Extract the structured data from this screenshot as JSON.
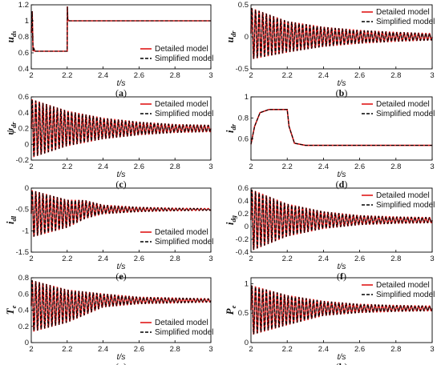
{
  "colors": {
    "detailed": "#e01818",
    "simplified": "#000000",
    "axis": "#000000"
  },
  "chart_data": [
    {
      "type": "line",
      "panel": "a",
      "caption": "(a)",
      "ylabel_main": "u",
      "ylabel_sub": "ds",
      "xlabel": "t/s",
      "xlim": [
        2,
        3
      ],
      "ylim": [
        0.4,
        1.2
      ],
      "xticks": [
        "2",
        "2.2",
        "2.4",
        "2.6",
        "2.8",
        "3"
      ],
      "yticks": [
        "0.4",
        "0.6",
        "0.8",
        "1",
        "1.2"
      ],
      "legend": [
        "Detailed model",
        "Simplified model"
      ],
      "legend_position": "lower-right",
      "series": [
        {
          "name": "Detailed model",
          "style": "solid",
          "color": "#e01818",
          "x": [
            2.0,
            2.005,
            2.01,
            2.015,
            2.02,
            2.2,
            2.201,
            2.203,
            2.21,
            3.0
          ],
          "values": [
            0.85,
            1.12,
            0.62,
            0.65,
            0.62,
            0.62,
            1.18,
            1.02,
            1.0,
            1.0
          ]
        },
        {
          "name": "Simplified model",
          "style": "dashed",
          "color": "#000000",
          "x": [
            2.0,
            2.005,
            2.01,
            2.015,
            2.02,
            2.2,
            2.201,
            2.203,
            2.21,
            3.0
          ],
          "values": [
            0.85,
            1.12,
            0.62,
            0.65,
            0.62,
            0.62,
            1.18,
            1.02,
            1.0,
            1.0
          ]
        }
      ]
    },
    {
      "type": "line",
      "panel": "b",
      "caption": "(b)",
      "ylabel_main": "u",
      "ylabel_sub": "dr",
      "xlabel": "t/s",
      "xlim": [
        2,
        3
      ],
      "ylim": [
        -0.5,
        0.5
      ],
      "xticks": [
        "2",
        "2.2",
        "2.4",
        "2.6",
        "2.8",
        "3"
      ],
      "yticks": [
        "-0.5",
        "0",
        "0.5"
      ],
      "legend": [
        "Detailed model",
        "Simplified model"
      ],
      "legend_position": "top-right",
      "series": [
        {
          "name": "Detailed model",
          "style": "solid",
          "color": "#e01818",
          "x": [
            2.0,
            2.2,
            2.4,
            2.6,
            2.8,
            3.0
          ],
          "values": [
            0.05,
            0.0,
            0.0,
            0.0,
            0.0,
            0.0
          ],
          "oscillation_amplitude": [
            0.4,
            0.24,
            0.15,
            0.1,
            0.07,
            0.05
          ],
          "oscillation_frequency_hz": 50
        },
        {
          "name": "Simplified model",
          "style": "dashed",
          "color": "#000000",
          "x": [
            2.0,
            2.2,
            2.4,
            2.6,
            2.8,
            3.0
          ],
          "values": [
            0.05,
            0.0,
            0.0,
            0.0,
            0.0,
            0.0
          ],
          "oscillation_amplitude": [
            0.4,
            0.24,
            0.15,
            0.1,
            0.07,
            0.05
          ],
          "oscillation_frequency_hz": 50
        }
      ]
    },
    {
      "type": "line",
      "panel": "c",
      "caption": "(c)",
      "ylabel_main": "ψ",
      "ylabel_sub": "dr",
      "xlabel": "t/s",
      "xlim": [
        2,
        3
      ],
      "ylim": [
        -0.2,
        0.6
      ],
      "xticks": [
        "2",
        "2.2",
        "2.4",
        "2.6",
        "2.8",
        "3"
      ],
      "yticks": [
        "-0.2",
        "0",
        "0.2",
        "0.4",
        "0.6"
      ],
      "legend": [
        "Detailed model",
        "Simplified model"
      ],
      "legend_position": "top-right",
      "series": [
        {
          "name": "Detailed model",
          "style": "solid",
          "color": "#e01818",
          "x": [
            2.0,
            2.2,
            2.4,
            2.6,
            2.8,
            3.0
          ],
          "values": [
            0.2,
            0.2,
            0.2,
            0.2,
            0.2,
            0.2
          ],
          "oscillation_amplitude": [
            0.37,
            0.22,
            0.13,
            0.08,
            0.05,
            0.04
          ],
          "oscillation_frequency_hz": 50
        },
        {
          "name": "Simplified model",
          "style": "dashed",
          "color": "#000000",
          "x": [
            2.0,
            2.2,
            2.4,
            2.6,
            2.8,
            3.0
          ],
          "values": [
            0.2,
            0.2,
            0.2,
            0.2,
            0.2,
            0.2
          ],
          "oscillation_amplitude": [
            0.37,
            0.22,
            0.13,
            0.08,
            0.05,
            0.04
          ],
          "oscillation_frequency_hz": 50
        }
      ]
    },
    {
      "type": "line",
      "panel": "d",
      "caption": "(d)",
      "ylabel_main": "i",
      "ylabel_sub": "dr",
      "xlabel": "t/s",
      "xlim": [
        2,
        3
      ],
      "ylim": [
        0.4,
        1.0
      ],
      "xticks": [
        "2",
        "2.2",
        "2.4",
        "2.6",
        "2.8",
        "3"
      ],
      "yticks": [
        "0.6",
        "0.8",
        "1"
      ],
      "legend": [
        "Detailed model",
        "Simplified model"
      ],
      "legend_position": "top-right",
      "series": [
        {
          "name": "Detailed model",
          "style": "solid",
          "color": "#e01818",
          "x": [
            2.0,
            2.02,
            2.05,
            2.1,
            2.2,
            2.21,
            2.24,
            2.3,
            3.0
          ],
          "values": [
            0.55,
            0.72,
            0.85,
            0.88,
            0.88,
            0.72,
            0.56,
            0.54,
            0.54
          ]
        },
        {
          "name": "Simplified model",
          "style": "dashed",
          "color": "#000000",
          "x": [
            2.0,
            2.02,
            2.05,
            2.1,
            2.2,
            2.21,
            2.24,
            2.3,
            3.0
          ],
          "values": [
            0.55,
            0.72,
            0.85,
            0.88,
            0.88,
            0.72,
            0.56,
            0.54,
            0.54
          ]
        }
      ]
    },
    {
      "type": "line",
      "panel": "e",
      "caption": "(e)",
      "ylabel_main": "i",
      "ylabel_sub": "dl",
      "xlabel": "t/s",
      "xlim": [
        2,
        3
      ],
      "ylim": [
        -1.5,
        0
      ],
      "xticks": [
        "2",
        "2.2",
        "2.4",
        "2.6",
        "2.8",
        "3"
      ],
      "yticks": [
        "-1.5",
        "-1",
        "-0.5",
        "0"
      ],
      "legend": [
        "Detailed model",
        "Simplified model"
      ],
      "legend_position": "lower-right",
      "series": [
        {
          "name": "Detailed model",
          "style": "solid",
          "color": "#e01818",
          "x": [
            2.0,
            2.2,
            2.3,
            2.4,
            2.6,
            2.8,
            3.0
          ],
          "values": [
            -0.6,
            -0.6,
            -0.5,
            -0.5,
            -0.5,
            -0.5,
            -0.5
          ],
          "oscillation_amplitude": [
            0.55,
            0.32,
            0.1,
            0.05,
            0.03,
            0.02,
            0.02
          ],
          "oscillation_frequency_hz": 50
        },
        {
          "name": "Simplified model",
          "style": "dashed",
          "color": "#000000",
          "x": [
            2.0,
            2.2,
            2.3,
            2.4,
            2.6,
            2.8,
            3.0
          ],
          "values": [
            -0.6,
            -0.6,
            -0.5,
            -0.5,
            -0.5,
            -0.5,
            -0.5
          ],
          "oscillation_amplitude": [
            0.55,
            0.32,
            0.1,
            0.05,
            0.03,
            0.02,
            0.02
          ],
          "oscillation_frequency_hz": 50
        }
      ]
    },
    {
      "type": "line",
      "panel": "f",
      "caption": "(f)",
      "ylabel_main": "i",
      "ylabel_sub": "dg",
      "xlabel": "t/s",
      "xlim": [
        2,
        3
      ],
      "ylim": [
        -0.4,
        0.6
      ],
      "xticks": [
        "2",
        "2.2",
        "2.4",
        "2.6",
        "2.8",
        "3"
      ],
      "yticks": [
        "-0.4",
        "-0.2",
        "0",
        "0.2",
        "0.4",
        "0.6"
      ],
      "legend": [
        "Detailed model",
        "Simplified model"
      ],
      "legend_position": "top-right",
      "series": [
        {
          "name": "Detailed model",
          "style": "solid",
          "color": "#e01818",
          "x": [
            2.0,
            2.2,
            2.4,
            2.6,
            2.8,
            3.0
          ],
          "values": [
            0.1,
            0.1,
            0.1,
            0.1,
            0.1,
            0.1
          ],
          "oscillation_amplitude": [
            0.48,
            0.25,
            0.13,
            0.07,
            0.05,
            0.04
          ],
          "oscillation_frequency_hz": 50
        },
        {
          "name": "Simplified model",
          "style": "dashed",
          "color": "#000000",
          "x": [
            2.0,
            2.2,
            2.4,
            2.6,
            2.8,
            3.0
          ],
          "values": [
            0.1,
            0.1,
            0.1,
            0.1,
            0.1,
            0.1
          ],
          "oscillation_amplitude": [
            0.48,
            0.25,
            0.13,
            0.07,
            0.05,
            0.04
          ],
          "oscillation_frequency_hz": 50
        }
      ]
    },
    {
      "type": "line",
      "panel": "g",
      "caption": "(g)",
      "ylabel_main": "T",
      "ylabel_sub": "e",
      "xlabel": "t/s",
      "xlim": [
        2,
        3
      ],
      "ylim": [
        0,
        0.8
      ],
      "xticks": [
        "2",
        "2.2",
        "2.4",
        "2.6",
        "2.8",
        "3"
      ],
      "yticks": [
        "0",
        "0.2",
        "0.4",
        "0.6",
        "0.8"
      ],
      "legend": [
        "Detailed model",
        "Simplified model"
      ],
      "legend_position": "lower-right",
      "series": [
        {
          "name": "Detailed model",
          "style": "solid",
          "color": "#e01818",
          "x": [
            2.0,
            2.2,
            2.4,
            2.6,
            2.8,
            3.0
          ],
          "values": [
            0.45,
            0.45,
            0.52,
            0.52,
            0.52,
            0.52
          ],
          "oscillation_amplitude": [
            0.32,
            0.2,
            0.08,
            0.04,
            0.03,
            0.02
          ],
          "oscillation_frequency_hz": 50
        },
        {
          "name": "Simplified model",
          "style": "dashed",
          "color": "#000000",
          "x": [
            2.0,
            2.2,
            2.4,
            2.6,
            2.8,
            3.0
          ],
          "values": [
            0.45,
            0.45,
            0.52,
            0.52,
            0.52,
            0.52
          ],
          "oscillation_amplitude": [
            0.32,
            0.2,
            0.08,
            0.04,
            0.03,
            0.02
          ],
          "oscillation_frequency_hz": 50
        }
      ]
    },
    {
      "type": "line",
      "panel": "h",
      "caption": "(h)",
      "ylabel_main": "P",
      "ylabel_sub": "e",
      "xlabel": "t/s",
      "xlim": [
        2,
        3
      ],
      "ylim": [
        0,
        1.1
      ],
      "xticks": [
        "2",
        "2.2",
        "2.4",
        "2.6",
        "2.8",
        "3"
      ],
      "yticks": [
        "0",
        "0.5",
        "1"
      ],
      "legend": [
        "Detailed model",
        "Simplified model"
      ],
      "legend_position": "top-right",
      "series": [
        {
          "name": "Detailed model",
          "style": "solid",
          "color": "#e01818",
          "x": [
            2.0,
            2.2,
            2.4,
            2.6,
            2.8,
            3.0
          ],
          "values": [
            0.55,
            0.55,
            0.58,
            0.58,
            0.58,
            0.58
          ],
          "oscillation_amplitude": [
            0.42,
            0.25,
            0.12,
            0.07,
            0.05,
            0.04
          ],
          "oscillation_frequency_hz": 50
        },
        {
          "name": "Simplified model",
          "style": "dashed",
          "color": "#000000",
          "x": [
            2.0,
            2.2,
            2.4,
            2.6,
            2.8,
            3.0
          ],
          "values": [
            0.55,
            0.55,
            0.58,
            0.58,
            0.58,
            0.58
          ],
          "oscillation_amplitude": [
            0.42,
            0.25,
            0.12,
            0.07,
            0.05,
            0.04
          ],
          "oscillation_frequency_hz": 50
        }
      ]
    }
  ]
}
